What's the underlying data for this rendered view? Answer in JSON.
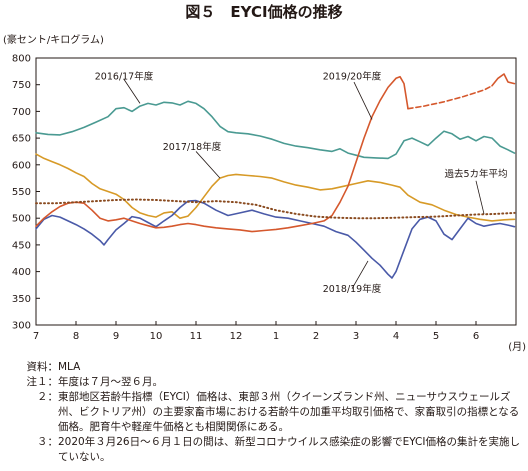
{
  "title": "図５　EYCI価格の推移",
  "chart_data": {
    "type": "line",
    "ylabel": "(豪セント/キログラム)",
    "xlabel": "(月)",
    "ylim": [
      300,
      800
    ],
    "yticks": [
      300,
      350,
      400,
      450,
      500,
      550,
      600,
      650,
      700,
      750,
      800
    ],
    "x_categories": [
      "7",
      "8",
      "9",
      "10",
      "11",
      "12",
      "1",
      "2",
      "3",
      "4",
      "5",
      "6"
    ],
    "grid": false,
    "series": [
      {
        "name": "2016/17年度",
        "color": "#4a9a92",
        "style": "solid",
        "points": [
          [
            0,
            660
          ],
          [
            0.3,
            657
          ],
          [
            0.6,
            656
          ],
          [
            0.9,
            662
          ],
          [
            1.2,
            670
          ],
          [
            1.5,
            680
          ],
          [
            1.8,
            690
          ],
          [
            2.0,
            705
          ],
          [
            2.2,
            707
          ],
          [
            2.4,
            700
          ],
          [
            2.6,
            710
          ],
          [
            2.8,
            715
          ],
          [
            3.0,
            712
          ],
          [
            3.2,
            717
          ],
          [
            3.4,
            716
          ],
          [
            3.6,
            712
          ],
          [
            3.8,
            719
          ],
          [
            4.0,
            715
          ],
          [
            4.2,
            705
          ],
          [
            4.4,
            690
          ],
          [
            4.6,
            672
          ],
          [
            4.8,
            662
          ],
          [
            5.0,
            660
          ],
          [
            5.3,
            658
          ],
          [
            5.6,
            654
          ],
          [
            5.9,
            648
          ],
          [
            6.2,
            640
          ],
          [
            6.5,
            635
          ],
          [
            6.8,
            632
          ],
          [
            7.1,
            628
          ],
          [
            7.4,
            625
          ],
          [
            7.6,
            630
          ],
          [
            7.8,
            622
          ],
          [
            8.0,
            618
          ],
          [
            8.2,
            614
          ],
          [
            8.5,
            613
          ],
          [
            8.8,
            612
          ],
          [
            9.0,
            620
          ],
          [
            9.2,
            645
          ],
          [
            9.4,
            650
          ],
          [
            9.6,
            643
          ],
          [
            9.8,
            636
          ],
          [
            10.0,
            650
          ],
          [
            10.2,
            663
          ],
          [
            10.4,
            658
          ],
          [
            10.6,
            648
          ],
          [
            10.8,
            653
          ],
          [
            11.0,
            645
          ],
          [
            11.2,
            653
          ],
          [
            11.4,
            650
          ],
          [
            11.6,
            635
          ],
          [
            11.8,
            628
          ],
          [
            11.96,
            622
          ]
        ]
      },
      {
        "name": "2017/18年度",
        "color": "#d79a27",
        "style": "solid",
        "points": [
          [
            0,
            620
          ],
          [
            0.2,
            612
          ],
          [
            0.4,
            606
          ],
          [
            0.6,
            600
          ],
          [
            0.8,
            593
          ],
          [
            1.0,
            585
          ],
          [
            1.2,
            578
          ],
          [
            1.4,
            565
          ],
          [
            1.6,
            555
          ],
          [
            1.8,
            550
          ],
          [
            2.0,
            545
          ],
          [
            2.2,
            535
          ],
          [
            2.4,
            520
          ],
          [
            2.6,
            510
          ],
          [
            2.8,
            505
          ],
          [
            3.0,
            502
          ],
          [
            3.2,
            510
          ],
          [
            3.4,
            512
          ],
          [
            3.6,
            500
          ],
          [
            3.8,
            504
          ],
          [
            4.0,
            520
          ],
          [
            4.2,
            540
          ],
          [
            4.4,
            560
          ],
          [
            4.6,
            575
          ],
          [
            4.8,
            580
          ],
          [
            5.0,
            582
          ],
          [
            5.3,
            580
          ],
          [
            5.6,
            578
          ],
          [
            5.9,
            575
          ],
          [
            6.2,
            568
          ],
          [
            6.5,
            562
          ],
          [
            6.8,
            558
          ],
          [
            7.1,
            553
          ],
          [
            7.4,
            555
          ],
          [
            7.7,
            560
          ],
          [
            8.0,
            565
          ],
          [
            8.3,
            570
          ],
          [
            8.6,
            567
          ],
          [
            8.9,
            562
          ],
          [
            9.1,
            558
          ],
          [
            9.3,
            543
          ],
          [
            9.6,
            530
          ],
          [
            9.9,
            525
          ],
          [
            10.2,
            515
          ],
          [
            10.5,
            507
          ],
          [
            10.8,
            502
          ],
          [
            11.1,
            498
          ],
          [
            11.4,
            495
          ],
          [
            11.7,
            497
          ],
          [
            11.96,
            498
          ]
        ]
      },
      {
        "name": "2018/19年度",
        "color": "#4a5aa8",
        "style": "solid",
        "points": [
          [
            0,
            480
          ],
          [
            0.2,
            498
          ],
          [
            0.4,
            505
          ],
          [
            0.6,
            502
          ],
          [
            0.8,
            495
          ],
          [
            1.0,
            488
          ],
          [
            1.2,
            480
          ],
          [
            1.4,
            470
          ],
          [
            1.6,
            458
          ],
          [
            1.7,
            450
          ],
          [
            1.8,
            460
          ],
          [
            2.0,
            478
          ],
          [
            2.2,
            490
          ],
          [
            2.4,
            503
          ],
          [
            2.6,
            500
          ],
          [
            2.8,
            492
          ],
          [
            3.0,
            484
          ],
          [
            3.2,
            495
          ],
          [
            3.4,
            505
          ],
          [
            3.6,
            520
          ],
          [
            3.8,
            532
          ],
          [
            4.0,
            533
          ],
          [
            4.2,
            528
          ],
          [
            4.5,
            515
          ],
          [
            4.8,
            505
          ],
          [
            5.1,
            510
          ],
          [
            5.4,
            515
          ],
          [
            5.7,
            508
          ],
          [
            6.0,
            502
          ],
          [
            6.3,
            500
          ],
          [
            6.6,
            495
          ],
          [
            6.9,
            490
          ],
          [
            7.2,
            485
          ],
          [
            7.5,
            475
          ],
          [
            7.8,
            468
          ],
          [
            8.0,
            455
          ],
          [
            8.2,
            440
          ],
          [
            8.4,
            425
          ],
          [
            8.6,
            412
          ],
          [
            8.8,
            395
          ],
          [
            8.9,
            388
          ],
          [
            9.0,
            400
          ],
          [
            9.2,
            440
          ],
          [
            9.4,
            480
          ],
          [
            9.6,
            498
          ],
          [
            9.8,
            502
          ],
          [
            10.0,
            495
          ],
          [
            10.2,
            470
          ],
          [
            10.4,
            460
          ],
          [
            10.6,
            480
          ],
          [
            10.8,
            500
          ],
          [
            11.0,
            490
          ],
          [
            11.2,
            485
          ],
          [
            11.4,
            488
          ],
          [
            11.6,
            490
          ],
          [
            11.8,
            487
          ],
          [
            11.96,
            484
          ]
        ]
      },
      {
        "name": "2019/20年度",
        "color": "#d5582d",
        "style": "solid",
        "points": [
          [
            0,
            485
          ],
          [
            0.2,
            500
          ],
          [
            0.4,
            512
          ],
          [
            0.6,
            522
          ],
          [
            0.8,
            528
          ],
          [
            1.0,
            530
          ],
          [
            1.2,
            528
          ],
          [
            1.4,
            515
          ],
          [
            1.6,
            500
          ],
          [
            1.8,
            495
          ],
          [
            2.0,
            497
          ],
          [
            2.2,
            500
          ],
          [
            2.4,
            495
          ],
          [
            2.6,
            490
          ],
          [
            2.8,
            486
          ],
          [
            3.0,
            482
          ],
          [
            3.2,
            483
          ],
          [
            3.4,
            485
          ],
          [
            3.6,
            488
          ],
          [
            3.8,
            490
          ],
          [
            4.0,
            488
          ],
          [
            4.2,
            485
          ],
          [
            4.5,
            482
          ],
          [
            4.8,
            480
          ],
          [
            5.1,
            478
          ],
          [
            5.4,
            475
          ],
          [
            5.7,
            477
          ],
          [
            6.0,
            479
          ],
          [
            6.3,
            482
          ],
          [
            6.6,
            486
          ],
          [
            6.9,
            490
          ],
          [
            7.2,
            495
          ],
          [
            7.4,
            505
          ],
          [
            7.6,
            530
          ],
          [
            7.8,
            560
          ],
          [
            8.0,
            605
          ],
          [
            8.2,
            650
          ],
          [
            8.4,
            690
          ],
          [
            8.6,
            720
          ],
          [
            8.8,
            745
          ],
          [
            9.0,
            762
          ],
          [
            9.1,
            765
          ],
          [
            9.2,
            752
          ],
          [
            9.3,
            705
          ]
        ]
      },
      {
        "name": "2019/20年度",
        "color": "#d5582d",
        "style": "dashed",
        "points": [
          [
            9.3,
            705
          ],
          [
            9.7,
            710
          ],
          [
            10.2,
            718
          ],
          [
            10.7,
            728
          ],
          [
            11.2,
            740
          ],
          [
            11.4,
            748
          ]
        ]
      },
      {
        "name": "2019/20年度",
        "color": "#d5582d",
        "style": "solid",
        "points": [
          [
            11.4,
            748
          ],
          [
            11.55,
            762
          ],
          [
            11.7,
            770
          ],
          [
            11.8,
            755
          ],
          [
            11.96,
            752
          ]
        ]
      },
      {
        "name": "過去5カ年平均",
        "color": "#8a4b20",
        "style": "dotted",
        "points": [
          [
            0,
            528
          ],
          [
            0.5,
            528
          ],
          [
            1.0,
            530
          ],
          [
            1.5,
            532
          ],
          [
            2.0,
            534
          ],
          [
            2.5,
            535
          ],
          [
            3.0,
            534
          ],
          [
            3.5,
            532
          ],
          [
            4.0,
            530
          ],
          [
            4.5,
            532
          ],
          [
            5.0,
            530
          ],
          [
            5.5,
            525
          ],
          [
            6.0,
            515
          ],
          [
            6.5,
            508
          ],
          [
            7.0,
            503
          ],
          [
            7.5,
            501
          ],
          [
            8.0,
            500
          ],
          [
            8.5,
            500
          ],
          [
            9.0,
            501
          ],
          [
            9.5,
            502
          ],
          [
            10.0,
            503
          ],
          [
            10.5,
            505
          ],
          [
            11.0,
            507
          ],
          [
            11.5,
            508
          ],
          [
            11.96,
            510
          ]
        ]
      }
    ],
    "labels": [
      {
        "text": "2016/17年度",
        "at": [
          2.2,
          760
        ]
      },
      {
        "text": "2017/18年度",
        "at": [
          3.9,
          628
        ]
      },
      {
        "text": "2018/19年度",
        "at": [
          7.9,
          362
        ]
      },
      {
        "text": "2019/20年度",
        "at": [
          7.9,
          760
        ]
      },
      {
        "text": "過去5カ年平均",
        "at": [
          11.0,
          577
        ]
      }
    ]
  },
  "notes": [
    {
      "label": "資料：",
      "text": "MLA"
    },
    {
      "label": "注１：",
      "text": "年度は７月～翌６月。"
    },
    {
      "label": "２：",
      "text": "東部地区若齢牛指標（EYCI）価格は、東部３州（クイーンズランド州、ニューサウスウェールズ州、ビクトリア州）の主要家畜市場における若齢牛の加重平均取引価格で、家畜取引の指標となる価格。肥育牛や軽産牛価格とも相関関係にある。"
    },
    {
      "label": "３：",
      "text": "2020年３月26日～６月１日の間は、新型コロナウイルス感染症の影響でEYCI価格の集計を実施していない。"
    }
  ]
}
